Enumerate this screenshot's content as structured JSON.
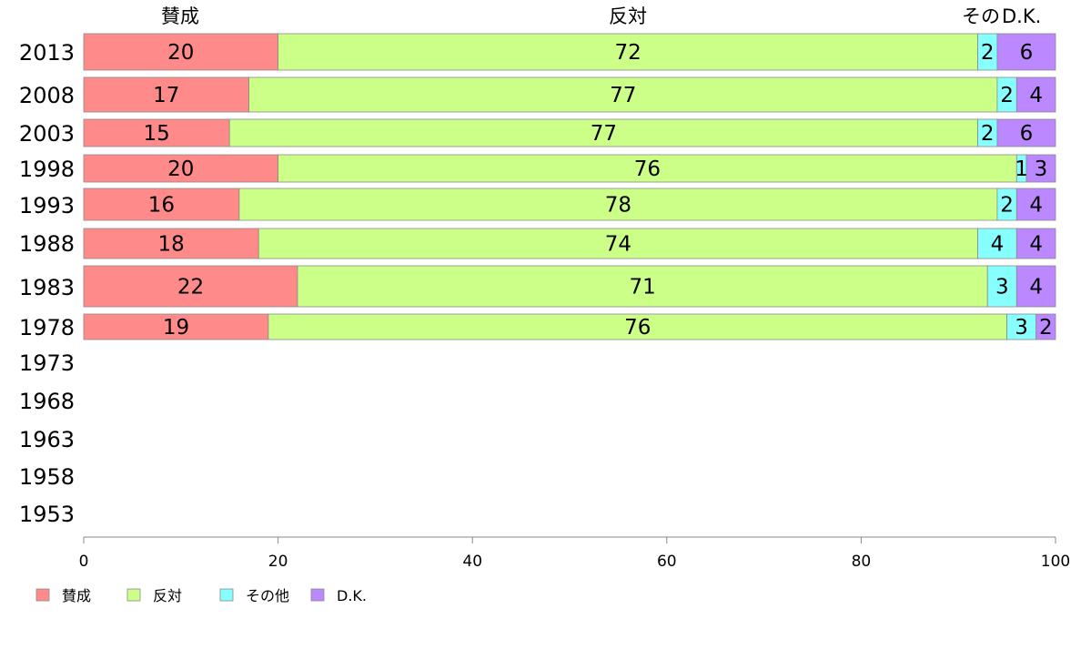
{
  "chart_data": {
    "type": "bar",
    "orientation": "horizontal",
    "stacked": true,
    "categories": [
      "2013",
      "2008",
      "2003",
      "1998",
      "1993",
      "1988",
      "1983",
      "1978",
      "1973",
      "1968",
      "1963",
      "1958",
      "1953"
    ],
    "series": [
      {
        "name": "賛成",
        "color": "#ff8a8a",
        "values": [
          20,
          17,
          15,
          20,
          16,
          18,
          22,
          19,
          null,
          null,
          null,
          null,
          null
        ]
      },
      {
        "name": "反対",
        "color": "#ccff88",
        "values": [
          72,
          77,
          77,
          76,
          78,
          74,
          71,
          76,
          null,
          null,
          null,
          null,
          null
        ]
      },
      {
        "name": "その他",
        "color": "#88ffff",
        "values": [
          2,
          2,
          2,
          1,
          2,
          4,
          3,
          3,
          null,
          null,
          null,
          null,
          null
        ]
      },
      {
        "name": "D.K.",
        "color": "#bb88ff",
        "values": [
          6,
          4,
          6,
          3,
          4,
          4,
          4,
          2,
          null,
          null,
          null,
          null,
          null
        ]
      }
    ],
    "header_labels": [
      "賛成",
      "反対",
      "その",
      "D.K."
    ],
    "xlim": [
      0,
      100
    ],
    "xticks": [
      0,
      20,
      40,
      60,
      80,
      100
    ],
    "grid": false,
    "legend_position": "bottom-left"
  }
}
